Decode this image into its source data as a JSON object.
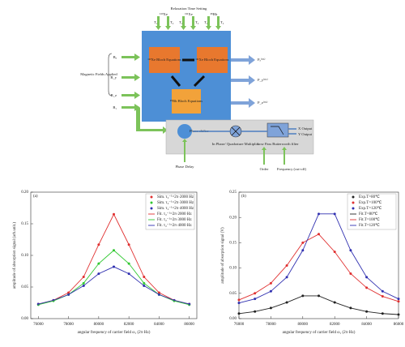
{
  "diagram": {
    "title": "Relaxation Time Setting",
    "time_labels": [
      "¹²⁹Xe",
      "¹³¹Xe",
      "⁸⁵Rb"
    ],
    "t_labels": [
      "T₁",
      "T₂",
      "T₁",
      "T₂",
      "T₁",
      "T₂"
    ],
    "blocks": [
      "¹²⁹Xe Bloch Equations",
      "¹³¹Xe Bloch Equations",
      "⁸⁵Rb Bloch Equations"
    ],
    "inputs": [
      "Bₓ",
      "B_y",
      "B_z",
      "B₁"
    ],
    "inputs_label": "Magnetic Fields Applied",
    "outputs": [
      "Pₓ⁽ᴿᵇ⁾",
      "P_y⁽ᴿᵇ⁾",
      "P_z⁽ᴿᵇ⁾"
    ],
    "phase_shifter": "Phase shifter",
    "multiplier": "In Phase/ Quadrature Multiplier",
    "filter": "Low Pass Butterworth filter",
    "x_output": "X Output",
    "y_output": "Y Output",
    "phase_delay": "Phase Delay",
    "order": "Order",
    "frequency": "Frequency (cut-off)"
  },
  "chart_data": [
    {
      "type": "line",
      "panel": "(a)",
      "x_label": "angular frequency of carrier field ω₁ (2π·Hz)",
      "y_label": "amplitude of absorption signal (arb.unit.)",
      "x": [
        76000,
        77000,
        78000,
        79000,
        80000,
        81000,
        82000,
        83000,
        84000,
        85000,
        86000
      ],
      "xlim": [
        75500,
        86500
      ],
      "xticks": [
        76000,
        78000,
        80000,
        82000,
        84000,
        86000
      ],
      "ylim": [
        0,
        0.2
      ],
      "yticks": [
        {
          "value": 0,
          "label": "0.00"
        },
        0.05,
        {
          "value": 0.1,
          "label": "0.10"
        },
        0.15,
        {
          "value": 0.2,
          "label": "0.20"
        }
      ],
      "legend": "upper right",
      "series": [
        {
          "name": "Sim. τ₂⁻¹=2π·2000 Hz",
          "color": "#e03030",
          "mode": "markers",
          "values": [
            0.023,
            0.029,
            0.041,
            0.066,
            0.117,
            0.165,
            0.117,
            0.066,
            0.041,
            0.029,
            0.023
          ]
        },
        {
          "name": "Sim. τ₂⁻¹=2π·3000 Hz",
          "color": "#30c830",
          "mode": "markers",
          "values": [
            0.022,
            0.028,
            0.038,
            0.056,
            0.087,
            0.108,
            0.087,
            0.056,
            0.038,
            0.028,
            0.022
          ]
        },
        {
          "name": "Sim. τ₂⁻¹=2π·4000 Hz",
          "color": "#3030b0",
          "mode": "markers",
          "values": [
            0.023,
            0.029,
            0.038,
            0.052,
            0.071,
            0.082,
            0.071,
            0.052,
            0.038,
            0.029,
            0.023
          ]
        },
        {
          "name": "Fit. τ₂⁻¹=2π·2000 Hz",
          "color": "#e03030",
          "mode": "lines",
          "values": [
            0.023,
            0.029,
            0.041,
            0.066,
            0.117,
            0.165,
            0.117,
            0.066,
            0.041,
            0.029,
            0.023
          ]
        },
        {
          "name": "Fit. τ₂⁻¹=2π·3000 Hz",
          "color": "#30c830",
          "mode": "lines",
          "values": [
            0.022,
            0.028,
            0.038,
            0.056,
            0.087,
            0.108,
            0.087,
            0.056,
            0.038,
            0.028,
            0.022
          ]
        },
        {
          "name": "Fit. τ₂⁻¹=2π·4000 Hz",
          "color": "#3030b0",
          "mode": "lines",
          "values": [
            0.023,
            0.029,
            0.038,
            0.052,
            0.071,
            0.082,
            0.071,
            0.052,
            0.038,
            0.029,
            0.023
          ]
        }
      ]
    },
    {
      "type": "line",
      "panel": "(b)",
      "x_label": "angular frequency of carrier field ω₁ (2π·Hz)",
      "y_label": "amplitude of absorption signal (V)",
      "x": [
        76000,
        77000,
        78000,
        79000,
        80000,
        81000,
        82000,
        83000,
        84000,
        85000,
        86000
      ],
      "xlim": [
        76000,
        86000
      ],
      "xticks": [
        76000,
        78000,
        80000,
        82000,
        84000,
        86000
      ],
      "ylim": [
        0,
        0.25
      ],
      "yticks": [
        {
          "value": 0,
          "label": "0.00"
        },
        0.05,
        {
          "value": 0.1,
          "label": "0.10"
        },
        0.15,
        {
          "value": 0.2,
          "label": "0.20"
        },
        0.25
      ],
      "legend": "upper right",
      "series": [
        {
          "name": "Exp.T=80℃",
          "color": "#222222",
          "mode": "markers",
          "values": [
            0.01,
            0.014,
            0.021,
            0.032,
            0.045,
            0.045,
            0.032,
            0.021,
            0.014,
            0.01,
            0.008
          ]
        },
        {
          "name": "Exp.T=100℃",
          "color": "#e03030",
          "mode": "markers",
          "values": [
            0.037,
            0.05,
            0.07,
            0.105,
            0.15,
            0.167,
            0.132,
            0.089,
            0.061,
            0.044,
            0.034
          ]
        },
        {
          "name": "Exp.T=120℃",
          "color": "#3030b0",
          "mode": "markers",
          "values": [
            0.031,
            0.039,
            0.054,
            0.082,
            0.135,
            0.207,
            0.207,
            0.135,
            0.082,
            0.054,
            0.039
          ]
        },
        {
          "name": "Fit.T=80℃",
          "color": "#222222",
          "mode": "lines",
          "values": [
            0.01,
            0.014,
            0.021,
            0.032,
            0.045,
            0.045,
            0.032,
            0.021,
            0.014,
            0.01,
            0.008
          ]
        },
        {
          "name": "Fit.T=100℃",
          "color": "#e03030",
          "mode": "lines",
          "values": [
            0.037,
            0.05,
            0.07,
            0.105,
            0.15,
            0.167,
            0.132,
            0.089,
            0.061,
            0.044,
            0.034
          ]
        },
        {
          "name": "Fit.T=120℃",
          "color": "#3030b0",
          "mode": "lines",
          "values": [
            0.031,
            0.039,
            0.054,
            0.082,
            0.135,
            0.207,
            0.207,
            0.135,
            0.082,
            0.054,
            0.039
          ]
        }
      ]
    }
  ]
}
